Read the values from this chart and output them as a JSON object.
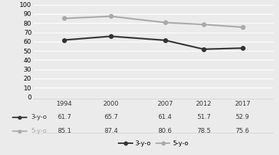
{
  "years": [
    1994,
    2000,
    2007,
    2012,
    2017
  ],
  "series": [
    {
      "label": "3-y-o",
      "values": [
        61.7,
        65.7,
        61.4,
        51.7,
        52.9
      ],
      "color": "#333333",
      "linewidth": 1.6,
      "markersize": 4
    },
    {
      "label": "5-y-o",
      "values": [
        85.1,
        87.4,
        80.6,
        78.5,
        75.6
      ],
      "color": "#aaaaaa",
      "linewidth": 1.6,
      "markersize": 4
    }
  ],
  "ylim": [
    0,
    100
  ],
  "yticks": [
    0,
    10,
    20,
    30,
    40,
    50,
    60,
    70,
    80,
    90,
    100
  ],
  "table_rows": [
    [
      "61.7",
      "65.7",
      "61.4",
      "51.7",
      "52.9"
    ],
    [
      "85.1",
      "87.4",
      "80.6",
      "78.5",
      "75.6"
    ]
  ],
  "table_col_labels": [
    "1994",
    "2000",
    "2007",
    "2012",
    "2017"
  ],
  "table_row_labels": [
    "3-y-o",
    "5-y-o"
  ],
  "bg_color": "#ebebeb",
  "grid_color": "#ffffff",
  "legend_labels": [
    "3-y-o",
    "5-y-o"
  ],
  "legend_colors": [
    "#333333",
    "#aaaaaa"
  ]
}
